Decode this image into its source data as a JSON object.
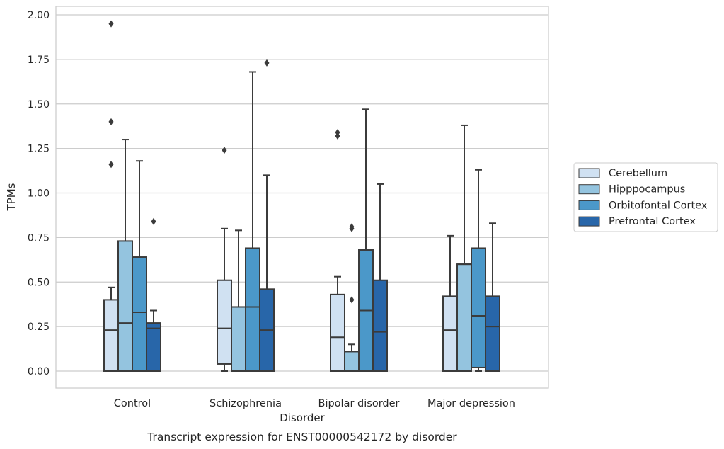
{
  "chart_data": {
    "type": "boxplot",
    "title": "",
    "xlabel": "Disorder",
    "ylabel": "TPMs",
    "caption": "Transcript expression for ENST00000542172 by disorder",
    "ylim": [
      -0.1,
      2.04
    ],
    "yticks": [
      "0.00",
      "0.25",
      "0.50",
      "0.75",
      "1.00",
      "1.25",
      "1.50",
      "1.75",
      "2.00"
    ],
    "grid": "horizontal",
    "legend_position": "right",
    "categories": [
      "Control",
      "Schizophrenia",
      "Bipolar disorder",
      "Major depression"
    ],
    "series": [
      {
        "name": "Cerebellum",
        "color": "#d0e1f2",
        "boxes": [
          {
            "whisker_low": 0.0,
            "q1": 0.0,
            "median": 0.23,
            "q3": 0.4,
            "whisker_high": 0.47,
            "outliers": [
              1.95,
              1.4,
              1.16
            ]
          },
          {
            "whisker_low": 0.0,
            "q1": 0.04,
            "median": 0.24,
            "q3": 0.51,
            "whisker_high": 0.8,
            "outliers": [
              1.24
            ]
          },
          {
            "whisker_low": 0.0,
            "q1": 0.0,
            "median": 0.19,
            "q3": 0.43,
            "whisker_high": 0.53,
            "outliers": [
              1.34,
              1.32
            ]
          },
          {
            "whisker_low": 0.0,
            "q1": 0.0,
            "median": 0.23,
            "q3": 0.42,
            "whisker_high": 0.76,
            "outliers": []
          }
        ]
      },
      {
        "name": "Hipppocampus",
        "color": "#94c4df",
        "boxes": [
          {
            "whisker_low": 0.0,
            "q1": 0.0,
            "median": 0.27,
            "q3": 0.73,
            "whisker_high": 1.3,
            "outliers": []
          },
          {
            "whisker_low": 0.0,
            "q1": 0.0,
            "median": 0.36,
            "q3": 0.36,
            "whisker_high": 0.79,
            "outliers": []
          },
          {
            "whisker_low": 0.0,
            "q1": 0.0,
            "median": 0.11,
            "q3": 0.11,
            "whisker_high": 0.15,
            "outliers": [
              0.81,
              0.8,
              0.4
            ]
          },
          {
            "whisker_low": 0.0,
            "q1": 0.0,
            "median": 0.6,
            "q3": 0.6,
            "whisker_high": 1.38,
            "outliers": []
          }
        ]
      },
      {
        "name": "Orbitofontal Cortex",
        "color": "#4b98c9",
        "boxes": [
          {
            "whisker_low": 0.0,
            "q1": 0.0,
            "median": 0.33,
            "q3": 0.64,
            "whisker_high": 1.18,
            "outliers": []
          },
          {
            "whisker_low": 0.0,
            "q1": 0.0,
            "median": 0.36,
            "q3": 0.69,
            "whisker_high": 1.68,
            "outliers": []
          },
          {
            "whisker_low": 0.0,
            "q1": 0.0,
            "median": 0.34,
            "q3": 0.68,
            "whisker_high": 1.47,
            "outliers": []
          },
          {
            "whisker_low": 0.0,
            "q1": 0.02,
            "median": 0.31,
            "q3": 0.69,
            "whisker_high": 1.13,
            "outliers": []
          }
        ]
      },
      {
        "name": "Prefrontal Cortex",
        "color": "#2866a9",
        "boxes": [
          {
            "whisker_low": 0.0,
            "q1": 0.0,
            "median": 0.24,
            "q3": 0.27,
            "whisker_high": 0.34,
            "outliers": [
              0.84
            ]
          },
          {
            "whisker_low": 0.0,
            "q1": 0.0,
            "median": 0.23,
            "q3": 0.46,
            "whisker_high": 1.1,
            "outliers": [
              1.73
            ]
          },
          {
            "whisker_low": 0.0,
            "q1": 0.0,
            "median": 0.22,
            "q3": 0.51,
            "whisker_high": 1.05,
            "outliers": []
          },
          {
            "whisker_low": 0.0,
            "q1": 0.0,
            "median": 0.25,
            "q3": 0.42,
            "whisker_high": 0.83,
            "outliers": []
          }
        ]
      }
    ]
  }
}
